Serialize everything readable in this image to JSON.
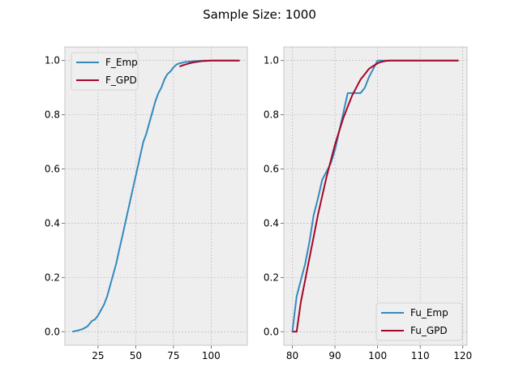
{
  "suptitle": "Sample Size: 1000",
  "colors": {
    "blue": "#348ABD",
    "red": "#A60628",
    "panel_bg": "#EEEEEE",
    "grid": "#B2B2B2"
  },
  "chart_data": [
    {
      "type": "line",
      "title": "",
      "xlabel": "",
      "ylabel": "",
      "xlim": [
        3,
        124
      ],
      "ylim": [
        -0.05,
        1.05
      ],
      "xticks": [
        25,
        50,
        75,
        100
      ],
      "yticks": [
        0.0,
        0.2,
        0.4,
        0.6,
        0.8,
        1.0
      ],
      "xtick_labels": [
        "25",
        "50",
        "75",
        "100"
      ],
      "ytick_labels": [
        "0.0",
        "0.2",
        "0.4",
        "0.6",
        "0.8",
        "1.0"
      ],
      "grid": true,
      "legend_position": "upper-left",
      "series": [
        {
          "name": "F_Emp",
          "color": "#348ABD",
          "x": [
            8,
            12,
            15,
            18,
            21,
            23,
            25,
            27,
            29,
            31,
            33,
            35,
            37,
            39,
            41,
            43,
            45,
            47,
            49,
            51,
            53,
            55,
            57,
            59,
            61,
            63,
            65,
            67,
            69,
            71,
            73,
            75,
            77,
            79,
            81,
            83,
            85,
            88,
            92,
            96,
            100,
            104,
            110,
            115,
            118
          ],
          "y": [
            0.0,
            0.005,
            0.01,
            0.02,
            0.04,
            0.045,
            0.06,
            0.08,
            0.1,
            0.13,
            0.17,
            0.21,
            0.25,
            0.3,
            0.35,
            0.4,
            0.45,
            0.5,
            0.55,
            0.6,
            0.65,
            0.7,
            0.73,
            0.77,
            0.81,
            0.85,
            0.88,
            0.9,
            0.93,
            0.95,
            0.96,
            0.975,
            0.985,
            0.99,
            0.992,
            0.995,
            0.996,
            0.998,
            0.999,
            1.0,
            1.0,
            1.0,
            1.0,
            1.0,
            1.0
          ]
        },
        {
          "name": "F_GPD",
          "color": "#A60628",
          "x": [
            79,
            82,
            85,
            88,
            91,
            94,
            97,
            100,
            103,
            106,
            110,
            115,
            119
          ],
          "y": [
            0.978,
            0.984,
            0.989,
            0.993,
            0.996,
            0.998,
            0.999,
            1.0,
            1.0,
            1.0,
            1.0,
            1.0,
            1.0
          ]
        }
      ]
    },
    {
      "type": "line",
      "title": "",
      "xlabel": "",
      "ylabel": "",
      "xlim": [
        78,
        121
      ],
      "ylim": [
        -0.05,
        1.05
      ],
      "xticks": [
        80,
        90,
        100,
        110,
        120
      ],
      "yticks": [
        0.0,
        0.2,
        0.4,
        0.6,
        0.8,
        1.0
      ],
      "xtick_labels": [
        "80",
        "90",
        "100",
        "110",
        "120"
      ],
      "ytick_labels": [
        "0.0",
        "0.2",
        "0.4",
        "0.6",
        "0.8",
        "1.0"
      ],
      "grid": true,
      "legend_position": "lower-right",
      "series": [
        {
          "name": "Fu_Emp",
          "color": "#348ABD",
          "x": [
            80,
            81,
            82,
            83,
            84,
            85,
            86,
            87,
            88,
            89,
            90,
            91,
            92,
            93,
            94,
            95,
            96,
            97,
            98,
            99,
            100,
            101,
            102,
            105,
            110,
            115,
            119
          ],
          "y": [
            0.0,
            0.13,
            0.19,
            0.25,
            0.33,
            0.43,
            0.49,
            0.56,
            0.59,
            0.62,
            0.67,
            0.74,
            0.81,
            0.88,
            0.88,
            0.88,
            0.88,
            0.9,
            0.94,
            0.97,
            1.0,
            1.0,
            1.0,
            1.0,
            1.0,
            1.0,
            1.0
          ]
        },
        {
          "name": "Fu_GPD",
          "color": "#A60628",
          "x": [
            80,
            81,
            82,
            83,
            84,
            85,
            86,
            87,
            88,
            89,
            90,
            91,
            92,
            93,
            94,
            95,
            96,
            97,
            98,
            99,
            100,
            101,
            102,
            103,
            105,
            110,
            115,
            119
          ],
          "y": [
            0.0,
            0.0,
            0.11,
            0.19,
            0.27,
            0.35,
            0.43,
            0.5,
            0.57,
            0.63,
            0.69,
            0.74,
            0.79,
            0.83,
            0.87,
            0.9,
            0.93,
            0.95,
            0.97,
            0.98,
            0.99,
            0.996,
            0.999,
            1.0,
            1.0,
            1.0,
            1.0,
            1.0
          ]
        }
      ]
    }
  ]
}
